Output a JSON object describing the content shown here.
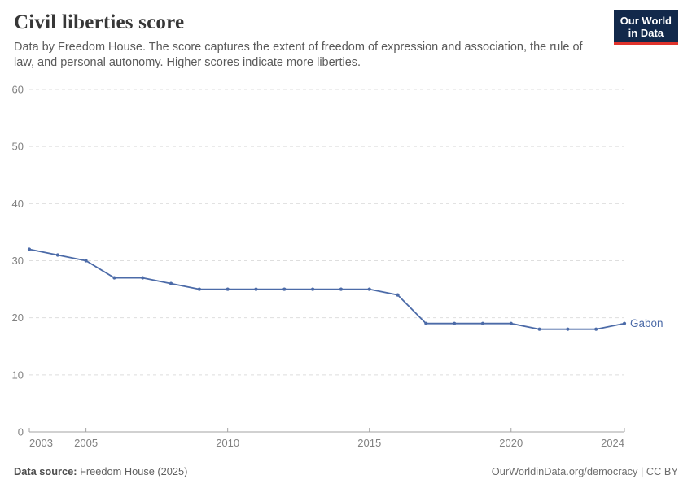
{
  "header": {
    "title": "Civil liberties score",
    "subtitle": "Data by Freedom House. The score captures the extent of freedom of expression and association, the rule of law, and personal autonomy. Higher scores indicate more liberties.",
    "logo": {
      "line1": "Our World",
      "line2": "in Data"
    }
  },
  "chart_data": {
    "type": "line",
    "title": "Civil liberties score",
    "x": [
      2003,
      2004,
      2005,
      2006,
      2007,
      2008,
      2009,
      2010,
      2011,
      2012,
      2013,
      2014,
      2015,
      2016,
      2017,
      2018,
      2019,
      2020,
      2021,
      2022,
      2023,
      2024
    ],
    "series": [
      {
        "name": "Gabon",
        "color": "#4c6ba8",
        "values": [
          32,
          31,
          30,
          27,
          27,
          26,
          25,
          25,
          25,
          25,
          25,
          25,
          25,
          24,
          19,
          19,
          19,
          19,
          18,
          18,
          18,
          19
        ]
      }
    ],
    "x_ticks": [
      2003,
      2005,
      2010,
      2015,
      2020,
      2024
    ],
    "y_ticks": [
      0,
      10,
      20,
      30,
      40,
      50,
      60
    ],
    "xlim": [
      2003,
      2024
    ],
    "ylim": [
      0,
      60
    ],
    "grid": "horizontal-dashed",
    "legend_position": "end-of-line",
    "xlabel": "",
    "ylabel": ""
  },
  "footer": {
    "source_label": "Data source:",
    "source_value": "Freedom House (2025)",
    "attribution": "OurWorldinData.org/democracy | CC BY"
  },
  "colors": {
    "line": "#4c6ba8",
    "gridline": "#dedede",
    "axis": "#a3a3a3",
    "tick_text": "#818181",
    "title_text": "#373737",
    "subtitle_text": "#5a5a5a",
    "logo_bg": "#12294b",
    "logo_accent": "#e0332c"
  }
}
